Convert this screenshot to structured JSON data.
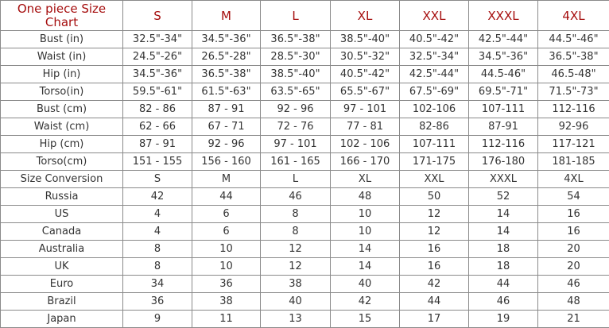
{
  "table": {
    "title": "One piece Size Chart",
    "sizes": [
      "S",
      "M",
      "L",
      "XL",
      "XXL",
      "XXXL",
      "4XL"
    ],
    "rows": [
      {
        "label": "Bust (in)",
        "values": [
          "32.5\"-34\"",
          "34.5\"-36\"",
          "36.5\"-38\"",
          "38.5\"-40\"",
          "40.5\"-42\"",
          "42.5\"-44\"",
          "44.5\"-46\""
        ]
      },
      {
        "label": "Waist (in)",
        "values": [
          "24.5\"-26\"",
          "26.5\"-28\"",
          "28.5\"-30\"",
          "30.5\"-32\"",
          "32.5\"-34\"",
          "34.5\"-36\"",
          "36.5\"-38\""
        ]
      },
      {
        "label": "Hip (in)",
        "values": [
          "34.5\"-36\"",
          "36.5\"-38\"",
          "38.5\"-40\"",
          "40.5\"-42\"",
          "42.5\"-44\"",
          "44.5-46\"",
          "46.5-48\""
        ]
      },
      {
        "label": "Torso(in)",
        "values": [
          "59.5\"-61\"",
          "61.5\"-63\"",
          "63.5\"-65\"",
          "65.5\"-67\"",
          "67.5\"-69\"",
          "69.5\"-71\"",
          "71.5\"-73\""
        ]
      },
      {
        "label": "Bust (cm)",
        "values": [
          "82 - 86",
          "87 - 91",
          "92 - 96",
          "97 - 101",
          "102-106",
          "107-111",
          "112-116"
        ]
      },
      {
        "label": "Waist (cm)",
        "values": [
          "62 - 66",
          "67 - 71",
          "72 - 76",
          "77 - 81",
          "82-86",
          "87-91",
          "92-96"
        ]
      },
      {
        "label": "Hip (cm)",
        "values": [
          "87 - 91",
          "92 - 96",
          "97 - 101",
          "102 - 106",
          "107-111",
          "112-116",
          "117-121"
        ]
      },
      {
        "label": "Torso(cm)",
        "values": [
          "151 - 155",
          "156 - 160",
          "161 - 165",
          "166 - 170",
          "171-175",
          "176-180",
          "181-185"
        ]
      },
      {
        "label": "Size Conversion",
        "values": [
          "S",
          "M",
          "L",
          "XL",
          "XXL",
          "XXXL",
          "4XL"
        ]
      },
      {
        "label": "Russia",
        "values": [
          "42",
          "44",
          "46",
          "48",
          "50",
          "52",
          "54"
        ]
      },
      {
        "label": "US",
        "values": [
          "4",
          "6",
          "8",
          "10",
          "12",
          "14",
          "16"
        ]
      },
      {
        "label": "Canada",
        "values": [
          "4",
          "6",
          "8",
          "10",
          "12",
          "14",
          "16"
        ]
      },
      {
        "label": "Australia",
        "values": [
          "8",
          "10",
          "12",
          "14",
          "16",
          "18",
          "20"
        ]
      },
      {
        "label": "UK",
        "values": [
          "8",
          "10",
          "12",
          "14",
          "16",
          "18",
          "20"
        ]
      },
      {
        "label": "Euro",
        "values": [
          "34",
          "36",
          "38",
          "40",
          "42",
          "44",
          "46"
        ]
      },
      {
        "label": "Brazil",
        "values": [
          "36",
          "38",
          "40",
          "42",
          "44",
          "46",
          "48"
        ]
      },
      {
        "label": "Japan",
        "values": [
          "9",
          "11",
          "13",
          "15",
          "17",
          "19",
          "21"
        ]
      }
    ]
  },
  "colors": {
    "header_text": "#a50d0d",
    "body_text": "#333333",
    "border": "#8a8a8a"
  }
}
